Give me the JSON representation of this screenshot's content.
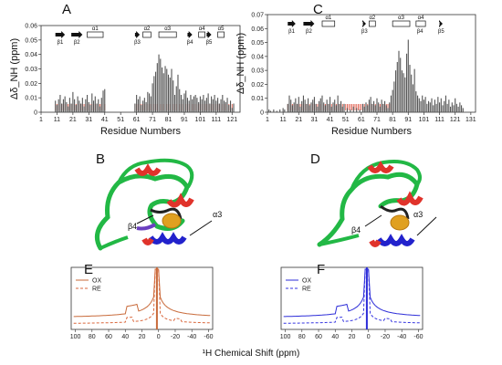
{
  "colors": {
    "bar_gray": "#555555",
    "bar_red": "#e06050",
    "ox_orange": "#c86a3a",
    "re_orange": "#d9673c",
    "ox_blue": "#2c2cd8",
    "re_blue": "#3636e0",
    "green": "#22b845",
    "red": "#e0332b",
    "blue": "#2222cc",
    "gold": "#e0a020"
  },
  "panels": {
    "A": "A",
    "B": "B",
    "C": "C",
    "D": "D",
    "E": "E",
    "F": "F"
  },
  "structure_labels": {
    "left": [
      "β1",
      "β2",
      "α1",
      "β3",
      "α2",
      "α3",
      "β4",
      "α4",
      "β5",
      "α5"
    ],
    "right": [
      "β1",
      "β2",
      "α1",
      "β3",
      "α2",
      "α3",
      "β4",
      "α4",
      "β5"
    ]
  },
  "annotations": {
    "B_alpha3": "α3",
    "B_beta4": "β4",
    "D_alpha3": "α3",
    "D_beta4": "β4"
  },
  "legend_E": {
    "ox": "OX",
    "re": "RE"
  },
  "legend_F": {
    "ox": "OX",
    "re": "RE"
  },
  "xlabel_bottom": "¹H Chemical Shift (ppm)",
  "chart_data": [
    {
      "type": "bar",
      "panel": "A",
      "xlabel": "Residue Numbers",
      "ylabel": "Δδ_NH (ppm)",
      "ylim": [
        0,
        0.06
      ],
      "yticks": [
        "0",
        "0.01",
        "0.02",
        "0.03",
        "0.04",
        "0.05",
        "0.06"
      ],
      "xticks": [
        "1",
        "11",
        "21",
        "31",
        "41",
        "51",
        "61",
        "71",
        "81",
        "91",
        "101",
        "111",
        "121"
      ],
      "xlim": [
        1,
        126
      ],
      "values": [
        [
          10,
          0.008
        ],
        [
          11,
          0.005
        ],
        [
          12,
          0.009
        ],
        [
          13,
          0.012
        ],
        [
          14,
          0.006
        ],
        [
          15,
          0.009
        ],
        [
          16,
          0.011
        ],
        [
          17,
          0.007
        ],
        [
          18,
          0.004
        ],
        [
          19,
          0.01
        ],
        [
          20,
          0.006
        ],
        [
          21,
          0.014
        ],
        [
          22,
          0.009
        ],
        [
          23,
          0.005
        ],
        [
          24,
          0.011
        ],
        [
          25,
          0.008
        ],
        [
          26,
          0.006
        ],
        [
          27,
          0.01
        ],
        [
          28,
          0.004
        ],
        [
          29,
          0.009
        ],
        [
          30,
          0.012
        ],
        [
          31,
          0.007
        ],
        [
          32,
          0.005
        ],
        [
          33,
          0.013
        ],
        [
          34,
          0.008
        ],
        [
          35,
          0.011
        ],
        [
          36,
          0.006
        ],
        [
          37,
          0.009
        ],
        [
          38,
          0.004
        ],
        [
          39,
          0.01
        ],
        [
          40,
          0.015
        ],
        [
          41,
          0.016
        ],
        [
          60,
          0.006
        ],
        [
          61,
          0.012
        ],
        [
          62,
          0.009
        ],
        [
          63,
          0.011
        ],
        [
          64,
          0.005
        ],
        [
          65,
          0.008
        ],
        [
          66,
          0.01
        ],
        [
          67,
          0.007
        ],
        [
          68,
          0.014
        ],
        [
          69,
          0.013
        ],
        [
          70,
          0.011
        ],
        [
          71,
          0.02
        ],
        [
          72,
          0.025
        ],
        [
          73,
          0.028
        ],
        [
          74,
          0.034
        ],
        [
          75,
          0.04
        ],
        [
          76,
          0.037
        ],
        [
          77,
          0.031
        ],
        [
          78,
          0.027
        ],
        [
          79,
          0.032
        ],
        [
          80,
          0.03
        ],
        [
          81,
          0.026
        ],
        [
          82,
          0.024
        ],
        [
          83,
          0.03
        ],
        [
          84,
          0.022
        ],
        [
          85,
          0.012
        ],
        [
          86,
          0.018
        ],
        [
          87,
          0.026
        ],
        [
          88,
          0.016
        ],
        [
          89,
          0.012
        ],
        [
          90,
          0.009
        ],
        [
          91,
          0.013
        ],
        [
          92,
          0.015
        ],
        [
          93,
          0.01
        ],
        [
          94,
          0.008
        ],
        [
          95,
          0.012
        ],
        [
          96,
          0.009
        ],
        [
          97,
          0.011
        ],
        [
          98,
          0.012
        ],
        [
          99,
          0.01
        ],
        [
          100,
          0.007
        ],
        [
          101,
          0.011
        ],
        [
          102,
          0.009
        ],
        [
          103,
          0.012
        ],
        [
          104,
          0.008
        ],
        [
          105,
          0.01
        ],
        [
          106,
          0.013
        ],
        [
          107,
          0.006
        ],
        [
          108,
          0.011
        ],
        [
          109,
          0.009
        ],
        [
          110,
          0.012
        ],
        [
          111,
          0.008
        ],
        [
          112,
          0.01
        ],
        [
          113,
          0.006
        ],
        [
          114,
          0.009
        ],
        [
          115,
          0.012
        ],
        [
          116,
          0.008
        ],
        [
          117,
          0.007
        ],
        [
          118,
          0.01
        ],
        [
          119,
          0.005
        ],
        [
          120,
          0.008
        ],
        [
          121,
          0.003
        ],
        [
          122,
          0.006
        ]
      ],
      "red_ranges": [
        [
          10,
          41
        ],
        [
          60,
          122
        ]
      ]
    },
    {
      "type": "bar",
      "panel": "C",
      "xlabel": "Residue Numbers",
      "ylabel": "Δδ_NH (ppm)",
      "ylim": [
        0,
        0.07
      ],
      "yticks": [
        "0",
        "0.01",
        "0.02",
        "0.03",
        "0.04",
        "0.05",
        "0.06",
        "0.07"
      ],
      "xticks": [
        "1",
        "11",
        "21",
        "31",
        "41",
        "51",
        "61",
        "71",
        "81",
        "91",
        "101",
        "111",
        "121",
        "131"
      ],
      "xlim": [
        1,
        134
      ],
      "values": [
        [
          2,
          0.002
        ],
        [
          3,
          0.001
        ],
        [
          5,
          0.002
        ],
        [
          7,
          0.001
        ],
        [
          9,
          0.002
        ],
        [
          11,
          0.003
        ],
        [
          12,
          0.002
        ],
        [
          14,
          0.006
        ],
        [
          15,
          0.012
        ],
        [
          16,
          0.009
        ],
        [
          17,
          0.005
        ],
        [
          18,
          0.007
        ],
        [
          19,
          0.01
        ],
        [
          20,
          0.006
        ],
        [
          21,
          0.011
        ],
        [
          22,
          0.004
        ],
        [
          23,
          0.008
        ],
        [
          24,
          0.012
        ],
        [
          25,
          0.009
        ],
        [
          26,
          0.006
        ],
        [
          27,
          0.01
        ],
        [
          28,
          0.005
        ],
        [
          29,
          0.007
        ],
        [
          30,
          0.009
        ],
        [
          31,
          0.011
        ],
        [
          32,
          0.006
        ],
        [
          33,
          0.004
        ],
        [
          34,
          0.008
        ],
        [
          35,
          0.01
        ],
        [
          36,
          0.012
        ],
        [
          37,
          0.007
        ],
        [
          38,
          0.005
        ],
        [
          39,
          0.009
        ],
        [
          40,
          0.006
        ],
        [
          41,
          0.011
        ],
        [
          42,
          0.004
        ],
        [
          43,
          0.007
        ],
        [
          44,
          0.009
        ],
        [
          45,
          0.005
        ],
        [
          46,
          0.012
        ],
        [
          47,
          0.006
        ],
        [
          48,
          0.008
        ],
        [
          49,
          0.004
        ],
        [
          50,
          0.006
        ],
        [
          52,
          0.003
        ],
        [
          54,
          0.002
        ],
        [
          56,
          0.004
        ],
        [
          58,
          0.003
        ],
        [
          60,
          0.002
        ],
        [
          62,
          0.006
        ],
        [
          63,
          0.004
        ],
        [
          64,
          0.007
        ],
        [
          65,
          0.005
        ],
        [
          66,
          0.009
        ],
        [
          67,
          0.011
        ],
        [
          68,
          0.006
        ],
        [
          69,
          0.008
        ],
        [
          70,
          0.005
        ],
        [
          71,
          0.01
        ],
        [
          72,
          0.007
        ],
        [
          73,
          0.004
        ],
        [
          74,
          0.009
        ],
        [
          75,
          0.006
        ],
        [
          76,
          0.008
        ],
        [
          77,
          0.005
        ],
        [
          78,
          0.003
        ],
        [
          79,
          0.007
        ],
        [
          80,
          0.012
        ],
        [
          81,
          0.016
        ],
        [
          82,
          0.022
        ],
        [
          83,
          0.03
        ],
        [
          84,
          0.036
        ],
        [
          85,
          0.044
        ],
        [
          86,
          0.039
        ],
        [
          87,
          0.03
        ],
        [
          88,
          0.028
        ],
        [
          89,
          0.025
        ],
        [
          90,
          0.042
        ],
        [
          91,
          0.052
        ],
        [
          92,
          0.034
        ],
        [
          93,
          0.027
        ],
        [
          94,
          0.02
        ],
        [
          95,
          0.031
        ],
        [
          96,
          0.015
        ],
        [
          97,
          0.012
        ],
        [
          98,
          0.01
        ],
        [
          99,
          0.008
        ],
        [
          100,
          0.012
        ],
        [
          101,
          0.009
        ],
        [
          102,
          0.011
        ],
        [
          103,
          0.006
        ],
        [
          104,
          0.008
        ],
        [
          105,
          0.007
        ],
        [
          106,
          0.01
        ],
        [
          107,
          0.005
        ],
        [
          108,
          0.009
        ],
        [
          109,
          0.006
        ],
        [
          110,
          0.011
        ],
        [
          111,
          0.007
        ],
        [
          112,
          0.01
        ],
        [
          113,
          0.005
        ],
        [
          114,
          0.008
        ],
        [
          115,
          0.012
        ],
        [
          116,
          0.006
        ],
        [
          117,
          0.009
        ],
        [
          118,
          0.004
        ],
        [
          119,
          0.007
        ],
        [
          120,
          0.005
        ],
        [
          121,
          0.01
        ],
        [
          122,
          0.006
        ],
        [
          123,
          0.004
        ],
        [
          124,
          0.007
        ],
        [
          125,
          0.005
        ],
        [
          126,
          0.003
        ]
      ],
      "red_ranges": [
        [
          14,
          80
        ]
      ]
    },
    {
      "type": "line",
      "panel": "E",
      "xlabel": "",
      "ylabel": "",
      "xlim": [
        105,
        -65
      ],
      "xticks": [
        "100",
        "80",
        "60",
        "40",
        "20",
        "0",
        "-20",
        "-40",
        "-60"
      ],
      "series": [
        {
          "name": "OX",
          "style": "solid"
        },
        {
          "name": "RE",
          "style": "dashed"
        }
      ]
    },
    {
      "type": "line",
      "panel": "F",
      "xlabel": "",
      "ylabel": "",
      "xlim": [
        105,
        -65
      ],
      "xticks": [
        "100",
        "80",
        "60",
        "40",
        "20",
        "0",
        "-20",
        "-40",
        "-60"
      ],
      "series": [
        {
          "name": "OX",
          "style": "solid"
        },
        {
          "name": "RE",
          "style": "dashed"
        }
      ]
    }
  ]
}
